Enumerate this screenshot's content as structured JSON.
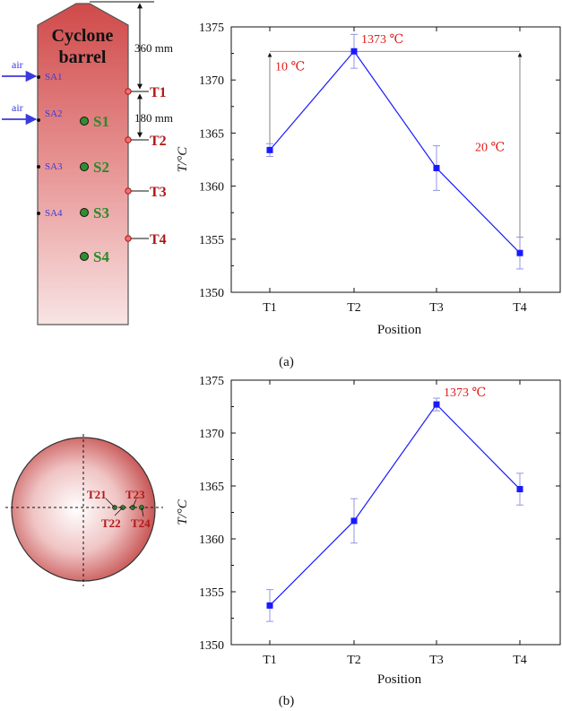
{
  "colors": {
    "series": "#1a1aff",
    "annotation": "#e01b1b",
    "probe_red": "#c01010",
    "air_blue": "#3a3ae0",
    "sample_green": "#2f8f2f",
    "barrel_top": "#d04a4a",
    "barrel_bottom": "#f6dede"
  },
  "schematic": {
    "barrel_title_line1": "Cyclone",
    "barrel_title_line2": "barrel",
    "air_labels": [
      "air",
      "air"
    ],
    "air_ports": [
      "SA1",
      "SA2",
      "SA3",
      "SA4"
    ],
    "sample_labels": [
      "S1",
      "S2",
      "S3",
      "S4"
    ],
    "probe_labels": [
      "T1",
      "T2",
      "T3",
      "T4"
    ],
    "dim_top": "360 mm",
    "dim_mid": "180 mm"
  },
  "cross_section": {
    "points": [
      "T21",
      "T22",
      "T23",
      "T24"
    ]
  },
  "chart_data": [
    {
      "type": "line",
      "panel": "(a)",
      "categories": [
        "T1",
        "T2",
        "T3",
        "T4"
      ],
      "values": [
        1363.4,
        1372.7,
        1361.7,
        1353.7
      ],
      "error": [
        0.6,
        1.6,
        2.1,
        1.5
      ],
      "xlabel": "Position",
      "ylabel": "T/°C",
      "ylim": [
        1350,
        1375
      ],
      "yticks": [
        "1350",
        "1355",
        "1360",
        "1365",
        "1370",
        "1375"
      ],
      "annotations": {
        "peak": "1373 ℃",
        "left_diff": "10 ℃",
        "right_diff": "20 ℃"
      }
    },
    {
      "type": "line",
      "panel": "(b)",
      "categories": [
        "T1",
        "T2",
        "T3",
        "T4"
      ],
      "values": [
        1353.7,
        1361.7,
        1372.7,
        1364.7
      ],
      "error": [
        1.5,
        2.1,
        0.6,
        1.5
      ],
      "xlabel": "Position",
      "ylabel": "T/°C",
      "ylim": [
        1350,
        1375
      ],
      "yticks": [
        "1350",
        "1355",
        "1360",
        "1365",
        "1370",
        "1375"
      ],
      "annotations": {
        "peak": "1373 ℃"
      }
    }
  ]
}
